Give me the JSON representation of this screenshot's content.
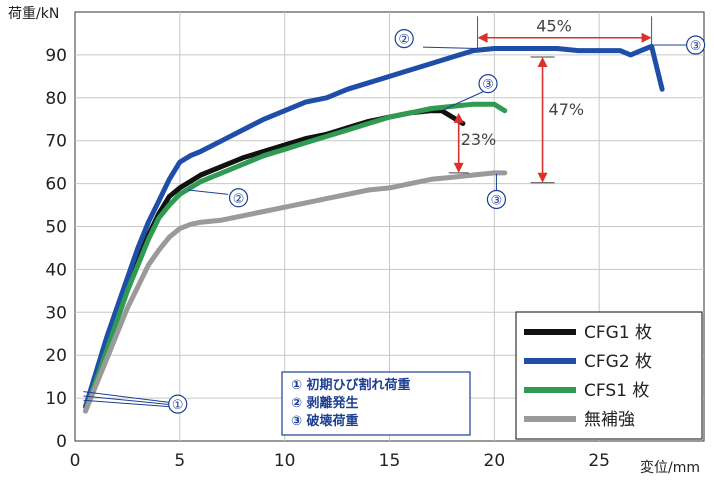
{
  "chart_data": {
    "type": "line",
    "ylabel": "荷重/kN",
    "xlabel": "変位/mm",
    "xlim": [
      0,
      30
    ],
    "ylim": [
      0,
      100
    ],
    "x_ticks": [
      "0",
      "5",
      "10",
      "15",
      "20",
      "25"
    ],
    "y_ticks": [
      "0",
      "10",
      "20",
      "30",
      "40",
      "50",
      "60",
      "70",
      "80",
      "90"
    ],
    "grid": true,
    "legend_position": "bottom-right",
    "series": [
      {
        "name": "CFG1 枚",
        "color": "#111111",
        "points": [
          [
            0.5,
            8
          ],
          [
            1,
            15
          ],
          [
            1.5,
            22
          ],
          [
            2,
            29
          ],
          [
            2.5,
            36
          ],
          [
            3,
            42
          ],
          [
            3.5,
            48
          ],
          [
            4,
            53
          ],
          [
            4.5,
            57
          ],
          [
            5,
            59
          ],
          [
            5.5,
            60.5
          ],
          [
            6,
            62
          ],
          [
            7,
            64
          ],
          [
            8,
            66
          ],
          [
            9,
            67.5
          ],
          [
            10,
            69
          ],
          [
            11,
            70.5
          ],
          [
            12,
            71.5
          ],
          [
            13,
            73
          ],
          [
            14,
            74.5
          ],
          [
            15,
            75.5
          ],
          [
            16,
            76.5
          ],
          [
            17,
            77
          ],
          [
            17.5,
            77
          ],
          [
            18,
            75.5
          ],
          [
            18.5,
            74
          ]
        ]
      },
      {
        "name": "CFG2 枚",
        "color": "#1f4ea8",
        "points": [
          [
            0.5,
            8
          ],
          [
            1,
            16
          ],
          [
            1.5,
            24
          ],
          [
            2,
            31
          ],
          [
            2.5,
            38
          ],
          [
            3,
            45
          ],
          [
            3.5,
            51
          ],
          [
            4,
            56
          ],
          [
            4.5,
            61
          ],
          [
            5,
            65
          ],
          [
            5.5,
            66.5
          ],
          [
            6,
            67.5
          ],
          [
            7,
            70
          ],
          [
            8,
            72.5
          ],
          [
            9,
            75
          ],
          [
            10,
            77
          ],
          [
            11,
            79
          ],
          [
            12,
            80
          ],
          [
            13,
            82
          ],
          [
            14,
            83.5
          ],
          [
            15,
            85
          ],
          [
            16,
            86.5
          ],
          [
            17,
            88
          ],
          [
            18,
            89.5
          ],
          [
            19,
            91
          ],
          [
            20,
            91.5
          ],
          [
            21,
            91.5
          ],
          [
            22,
            91.5
          ],
          [
            23,
            91.5
          ],
          [
            24,
            91
          ],
          [
            25,
            91
          ],
          [
            26,
            91
          ],
          [
            26.5,
            90
          ],
          [
            27,
            91
          ],
          [
            27.5,
            92
          ],
          [
            28,
            82
          ]
        ]
      },
      {
        "name": "CFS1 枚",
        "color": "#2e9a52",
        "points": [
          [
            0.5,
            7
          ],
          [
            1,
            14
          ],
          [
            1.5,
            21
          ],
          [
            2,
            28
          ],
          [
            2.5,
            35
          ],
          [
            3,
            41
          ],
          [
            3.5,
            47
          ],
          [
            4,
            52
          ],
          [
            4.5,
            55
          ],
          [
            5,
            57.5
          ],
          [
            5.5,
            59
          ],
          [
            6,
            60.5
          ],
          [
            7,
            62.5
          ],
          [
            8,
            64.5
          ],
          [
            9,
            66.5
          ],
          [
            10,
            68
          ],
          [
            11,
            69.5
          ],
          [
            12,
            71
          ],
          [
            13,
            72.5
          ],
          [
            14,
            74
          ],
          [
            15,
            75.5
          ],
          [
            16,
            76.5
          ],
          [
            17,
            77.5
          ],
          [
            18,
            78
          ],
          [
            19,
            78.5
          ],
          [
            20,
            78.5
          ],
          [
            20.5,
            77
          ]
        ]
      },
      {
        "name": "無補強",
        "color": "#9a9a9a",
        "points": [
          [
            0.5,
            7
          ],
          [
            1,
            13
          ],
          [
            1.5,
            19
          ],
          [
            2,
            25
          ],
          [
            2.5,
            31
          ],
          [
            3,
            36
          ],
          [
            3.5,
            41
          ],
          [
            4,
            44.5
          ],
          [
            4.5,
            47.5
          ],
          [
            5,
            49.5
          ],
          [
            5.5,
            50.5
          ],
          [
            6,
            51
          ],
          [
            7,
            51.5
          ],
          [
            8,
            52.5
          ],
          [
            9,
            53.5
          ],
          [
            10,
            54.5
          ],
          [
            11,
            55.5
          ],
          [
            12,
            56.5
          ],
          [
            13,
            57.5
          ],
          [
            14,
            58.5
          ],
          [
            15,
            59
          ],
          [
            16,
            60
          ],
          [
            17,
            61
          ],
          [
            18,
            61.5
          ],
          [
            19,
            62
          ],
          [
            20,
            62.5
          ],
          [
            20.5,
            62.5
          ]
        ]
      }
    ],
    "annotations": {
      "pct_45": "45%",
      "pct_47": "47%",
      "pct_23": "23%",
      "circle_1": "①",
      "circle_2": "②",
      "circle_3": "③"
    },
    "note_lines": [
      "① 初期ひび割れ荷重",
      "② 剥離発生",
      "③ 破壊荷重"
    ],
    "colors": {
      "arrow_red": "#d9322a",
      "note_blue": "#1c3f94"
    }
  }
}
